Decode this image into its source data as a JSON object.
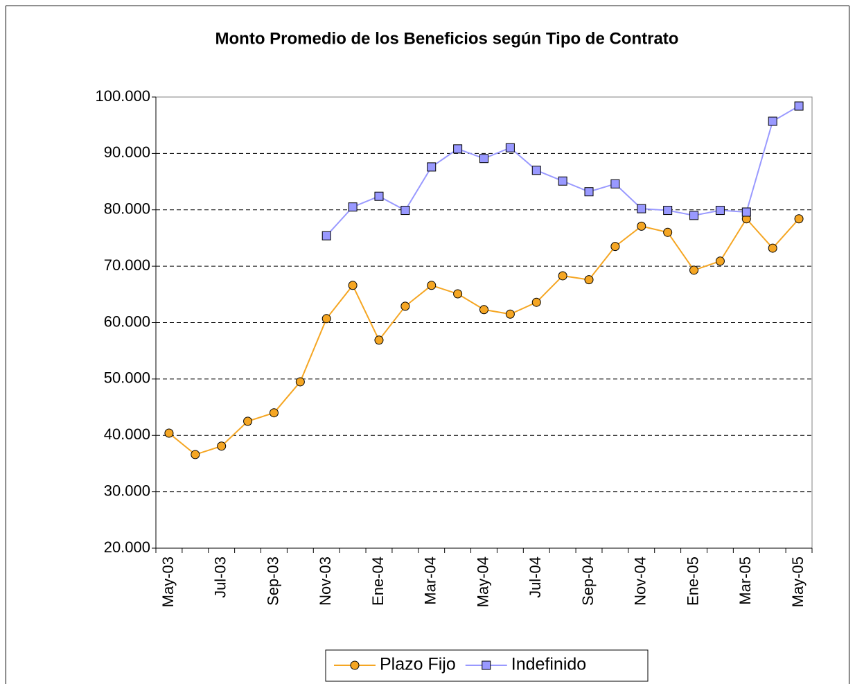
{
  "chart_data": {
    "type": "line",
    "title": "Monto Promedio de los Beneficios según Tipo de Contrato",
    "categories": [
      "May-03",
      null,
      "Jul-03",
      null,
      "Sep-03",
      null,
      "Nov-03",
      null,
      "Ene-04",
      null,
      "Mar-04",
      null,
      "May-04",
      null,
      "Jul-04",
      null,
      "Sep-04",
      null,
      "Nov-04",
      null,
      "Ene-05",
      null,
      "Mar-05",
      null,
      "May-05"
    ],
    "series": [
      {
        "name": "Plazo Fijo",
        "color": "#f5a623",
        "marker": "circle",
        "values": [
          40400,
          36600,
          38100,
          42500,
          44000,
          49500,
          60700,
          66600,
          56900,
          62900,
          66600,
          65100,
          62300,
          61500,
          63600,
          68300,
          67600,
          73500,
          77100,
          76000,
          69300,
          70900,
          78400,
          73200,
          78400
        ]
      },
      {
        "name": "Indefinido",
        "color": "#9999ff",
        "marker": "square",
        "values": [
          null,
          null,
          null,
          null,
          null,
          null,
          75400,
          80500,
          82400,
          79900,
          87600,
          90800,
          89100,
          91000,
          87000,
          85100,
          83200,
          84600,
          80200,
          79900,
          79000,
          79900,
          79600,
          95700,
          98400
        ]
      }
    ],
    "ylim": [
      20000,
      100000
    ],
    "yticks": [
      {
        "value": 20000,
        "label": "20.000"
      },
      {
        "value": 30000,
        "label": "30.000"
      },
      {
        "value": 40000,
        "label": "40.000"
      },
      {
        "value": 50000,
        "label": "50.000"
      },
      {
        "value": 60000,
        "label": "60.000"
      },
      {
        "value": 70000,
        "label": "70.000"
      },
      {
        "value": 80000,
        "label": "80.000"
      },
      {
        "value": 90000,
        "label": "90.000"
      },
      {
        "value": 100000,
        "label": "100.000"
      }
    ],
    "grid": true,
    "legend": "bottom"
  }
}
